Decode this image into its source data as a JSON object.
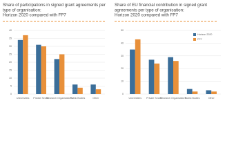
{
  "chart_data": [
    {
      "type": "bar",
      "title": "Share of participations in signed grant agreements per type of organisation:",
      "subtitle": "Horizon 2020 compared with FP7",
      "categories": [
        "Universities",
        "Private Sector",
        "Research Organisations",
        "Public Bodies",
        "Other"
      ],
      "series": [
        {
          "name": "Horizon 2020",
          "color": "#3b6e99",
          "values": [
            34,
            31,
            22,
            6,
            6
          ]
        },
        {
          "name": "FP7",
          "color": "#e8903a",
          "values": [
            37,
            30,
            25,
            4,
            3
          ]
        }
      ],
      "ylim": [
        0,
        40
      ],
      "yticks": [
        0,
        5,
        10,
        15,
        20,
        25,
        30,
        35,
        40
      ],
      "grid": true,
      "legend": false
    },
    {
      "type": "bar",
      "title": "Share of EU financial contribution in signed grant agreements per type of organisation:",
      "subtitle": "Horizon 2020 compared with FP7",
      "categories": [
        "Universities",
        "Private Sector",
        "Research Organisations",
        "Public Bodies",
        "Other"
      ],
      "series": [
        {
          "name": "Horizon 2020",
          "color": "#3b6e99",
          "values": [
            35,
            27,
            29,
            4,
            3
          ]
        },
        {
          "name": "FP7",
          "color": "#e8903a",
          "values": [
            43,
            24,
            26,
            2,
            2
          ]
        }
      ],
      "ylim": [
        0,
        50
      ],
      "yticks": [
        0,
        10,
        20,
        30,
        40,
        50
      ],
      "grid": true,
      "legend": "upper right"
    }
  ]
}
